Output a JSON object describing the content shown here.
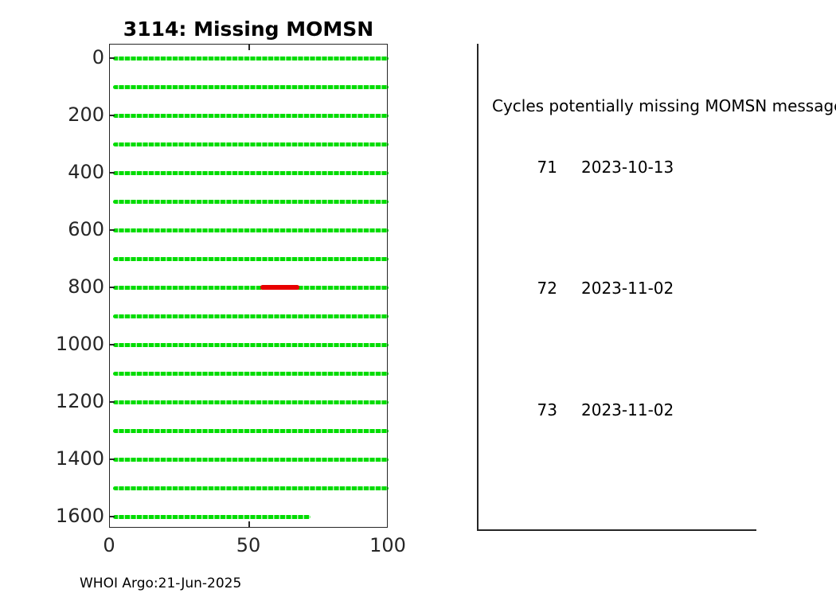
{
  "figure": {
    "title": "3114: Missing MOMSN",
    "caption": "WHOI Argo:21-Jun-2025"
  },
  "chart_data": {
    "type": "line",
    "title": "3114: Missing MOMSN",
    "xlabel": "",
    "ylabel": "",
    "xlim": [
      0,
      100
    ],
    "ylim": [
      0,
      1600
    ],
    "y_axis_reversed": true,
    "grid": false,
    "x_ticks": [
      0,
      50,
      100
    ],
    "y_ticks": [
      0,
      200,
      400,
      600,
      800,
      1000,
      1200,
      1400,
      1600
    ],
    "marker_color": "#00dc00",
    "missing_color": "#e80000",
    "series": [
      {
        "name": "received-momsn-rows",
        "rows": [
          {
            "y": 0,
            "x0": 1,
            "x1": 100
          },
          {
            "y": 100,
            "x0": 1,
            "x1": 100
          },
          {
            "y": 200,
            "x0": 1,
            "x1": 100
          },
          {
            "y": 300,
            "x0": 1,
            "x1": 100
          },
          {
            "y": 400,
            "x0": 1,
            "x1": 100
          },
          {
            "y": 500,
            "x0": 1,
            "x1": 100
          },
          {
            "y": 600,
            "x0": 1,
            "x1": 100
          },
          {
            "y": 700,
            "x0": 1,
            "x1": 100
          },
          {
            "y": 800,
            "x0": 1,
            "x1": 100
          },
          {
            "y": 900,
            "x0": 1,
            "x1": 100
          },
          {
            "y": 1000,
            "x0": 1,
            "x1": 100
          },
          {
            "y": 1100,
            "x0": 1,
            "x1": 100
          },
          {
            "y": 1200,
            "x0": 1,
            "x1": 100
          },
          {
            "y": 1300,
            "x0": 1,
            "x1": 100
          },
          {
            "y": 1400,
            "x0": 1,
            "x1": 100
          },
          {
            "y": 1500,
            "x0": 1,
            "x1": 100
          },
          {
            "y": 1600,
            "x0": 1,
            "x1": 72
          }
        ]
      },
      {
        "name": "missing-momsn-segments",
        "rows": [
          {
            "y": 800,
            "x0": 54,
            "x1": 68
          }
        ]
      }
    ]
  },
  "panel": {
    "header": "Cycles potentially missing MOMSN messages",
    "rows": [
      {
        "cycle": "71",
        "date": "2023-10-13"
      },
      {
        "cycle": "72",
        "date": "2023-11-02"
      },
      {
        "cycle": "73",
        "date": "2023-11-02"
      }
    ]
  }
}
